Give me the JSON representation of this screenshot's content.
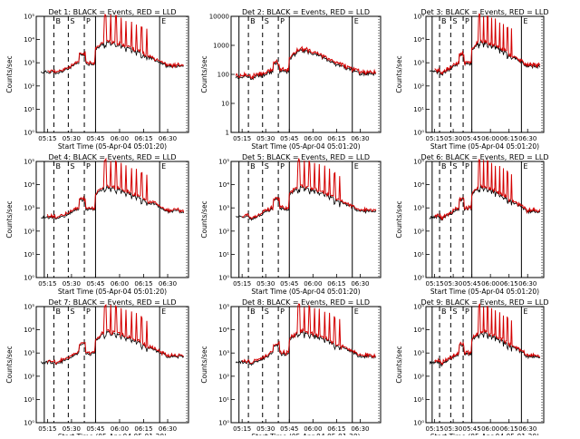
{
  "x_tick_labels": [
    "05:15",
    "05:30",
    "05:45",
    "06:00",
    "06:15",
    "06:30"
  ],
  "x_label": "Start Time (05-Apr-04 05:01:20)",
  "y_label": "Counts/sec",
  "marker_letters": [
    "B",
    "S",
    "P",
    "E"
  ],
  "colors": {
    "events": "#000000",
    "lld": "#d40000"
  },
  "chart_data": [
    {
      "type": "line",
      "title": "Det  1: BLACK = Events, RED = LLD",
      "ylog": true,
      "ylim": [
        1,
        100000
      ],
      "yticks": [
        "10⁰",
        "10¹",
        "10²",
        "10³",
        "10⁴",
        "10⁵"
      ]
    },
    {
      "type": "line",
      "title": "Det  2: BLACK = Events, RED = LLD",
      "ylog": true,
      "ylim": [
        1,
        10000
      ],
      "yticks": [
        "1",
        "10",
        "100",
        "1000",
        "10000"
      ]
    },
    {
      "type": "line",
      "title": "Det  3: BLACK = Events, RED = LLD",
      "ylog": true,
      "ylim": [
        1,
        100000
      ],
      "yticks": [
        "10⁰",
        "10¹",
        "10²",
        "10³",
        "10⁴",
        "10⁵"
      ]
    },
    {
      "type": "line",
      "title": "Det  4: BLACK = Events, RED = LLD",
      "ylog": true,
      "ylim": [
        1,
        100000
      ],
      "yticks": [
        "10⁰",
        "10¹",
        "10²",
        "10³",
        "10⁴",
        "10⁵"
      ]
    },
    {
      "type": "line",
      "title": "Det  5: BLACK = Events, RED = LLD",
      "ylog": true,
      "ylim": [
        1,
        100000
      ],
      "yticks": [
        "10⁰",
        "10¹",
        "10²",
        "10³",
        "10⁴",
        "10⁵"
      ]
    },
    {
      "type": "line",
      "title": "Det  6: BLACK = Events, RED = LLD",
      "ylog": true,
      "ylim": [
        1,
        100000
      ],
      "yticks": [
        "10⁰",
        "10¹",
        "10²",
        "10³",
        "10⁴",
        "10⁵"
      ]
    },
    {
      "type": "line",
      "title": "Det  7: BLACK = Events, RED = LLD",
      "ylog": true,
      "ylim": [
        1,
        100000
      ],
      "yticks": [
        "10⁰",
        "10¹",
        "10²",
        "10³",
        "10⁴",
        "10⁵"
      ]
    },
    {
      "type": "line",
      "title": "Det  8: BLACK = Events, RED = LLD",
      "ylog": true,
      "ylim": [
        1,
        100000
      ],
      "yticks": [
        "10⁰",
        "10¹",
        "10²",
        "10³",
        "10⁴",
        "10⁵"
      ]
    },
    {
      "type": "line",
      "title": "Det  9: BLACK = Events, RED = LLD",
      "ylog": true,
      "ylim": [
        1,
        100000
      ],
      "yticks": [
        "10⁰",
        "10¹",
        "10²",
        "10³",
        "10⁴",
        "10⁵"
      ]
    }
  ]
}
